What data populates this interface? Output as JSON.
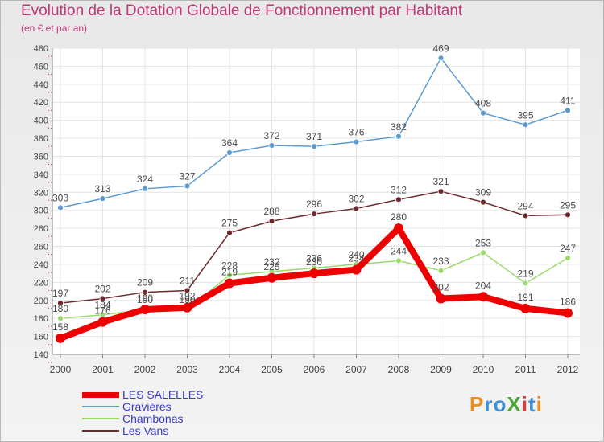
{
  "title": "Evolution de la Dotation Globale de Fonctionnement par Habitant",
  "subtitle": "(en € et par an)",
  "logo": "ProXiti",
  "colors": {
    "title": "#c0377a",
    "legend_text": "#3a3acd",
    "LES SALELLES": "#ee0000",
    "Gravières": "#5c9ad2",
    "Chambonas": "#9ad96b",
    "Les Vans": "#6e2b2f"
  },
  "chart_data": {
    "type": "line",
    "title": "Evolution de la Dotation Globale de Fonctionnement par Habitant",
    "subtitle": "(en € et par an)",
    "xlabel": "",
    "ylabel": "",
    "ylim": [
      140,
      480
    ],
    "yticks": [
      140,
      160,
      180,
      200,
      220,
      240,
      260,
      280,
      300,
      320,
      340,
      360,
      380,
      400,
      420,
      440,
      460,
      480
    ],
    "categories": [
      "2000",
      "2001",
      "2002",
      "2003",
      "2004",
      "2005",
      "2006",
      "2007",
      "2008",
      "2009",
      "2010",
      "2011",
      "2012"
    ],
    "grid": true,
    "legend": "bottom-left",
    "series": [
      {
        "name": "LES SALELLES",
        "values": [
          158,
          176,
          190,
          192,
          219,
          225,
          230,
          234,
          280,
          202,
          204,
          191,
          186
        ]
      },
      {
        "name": "Gravières",
        "values": [
          303,
          313,
          324,
          327,
          364,
          372,
          371,
          376,
          382,
          469,
          408,
          395,
          411
        ]
      },
      {
        "name": "Chambonas",
        "values": [
          180,
          184,
          190,
          190,
          228,
          232,
          236,
          240,
          244,
          233,
          253,
          219,
          247
        ]
      },
      {
        "name": "Les Vans",
        "values": [
          197,
          202,
          209,
          211,
          275,
          288,
          296,
          302,
          312,
          321,
          309,
          294,
          295
        ]
      }
    ]
  }
}
